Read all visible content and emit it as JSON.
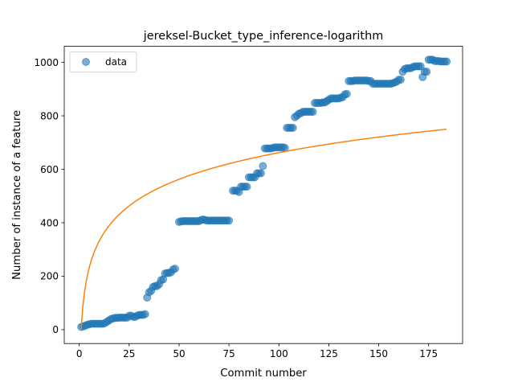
{
  "chart_data": {
    "type": "scatter",
    "title": "jereksel-Bucket_type_inference-logarithm",
    "xlabel": "Commit number",
    "ylabel": "Number of instance of a feature",
    "xlim": [
      -7.5,
      192
    ],
    "ylim": [
      -52,
      1060
    ],
    "xticks": [
      0,
      25,
      50,
      75,
      100,
      125,
      150,
      175
    ],
    "yticks": [
      0,
      200,
      400,
      600,
      800,
      1000
    ],
    "grid": false,
    "legend": {
      "position": "top-left",
      "entries": [
        "data"
      ]
    },
    "colors": {
      "data": "#1f77b4",
      "fit": "#ff7f0e"
    },
    "series": [
      {
        "name": "data",
        "kind": "scatter",
        "points": [
          [
            1,
            10
          ],
          [
            2,
            12
          ],
          [
            3,
            15
          ],
          [
            4,
            18
          ],
          [
            5,
            20
          ],
          [
            6,
            22
          ],
          [
            7,
            22
          ],
          [
            8,
            22
          ],
          [
            9,
            22
          ],
          [
            10,
            22
          ],
          [
            11,
            22
          ],
          [
            12,
            22
          ],
          [
            13,
            25
          ],
          [
            14,
            30
          ],
          [
            15,
            35
          ],
          [
            16,
            40
          ],
          [
            17,
            42
          ],
          [
            18,
            44
          ],
          [
            19,
            44
          ],
          [
            20,
            45
          ],
          [
            21,
            45
          ],
          [
            22,
            45
          ],
          [
            23,
            45
          ],
          [
            24,
            45
          ],
          [
            25,
            52
          ],
          [
            26,
            52
          ],
          [
            27,
            48
          ],
          [
            28,
            48
          ],
          [
            29,
            52
          ],
          [
            30,
            55
          ],
          [
            31,
            55
          ],
          [
            32,
            55
          ],
          [
            33,
            58
          ],
          [
            34,
            120
          ],
          [
            35,
            140
          ],
          [
            36,
            145
          ],
          [
            37,
            160
          ],
          [
            38,
            163
          ],
          [
            39,
            163
          ],
          [
            40,
            170
          ],
          [
            41,
            185
          ],
          [
            42,
            188
          ],
          [
            43,
            210
          ],
          [
            44,
            212
          ],
          [
            45,
            212
          ],
          [
            46,
            215
          ],
          [
            47,
            225
          ],
          [
            48,
            228
          ],
          [
            50,
            403
          ],
          [
            51,
            405
          ],
          [
            52,
            406
          ],
          [
            53,
            406
          ],
          [
            54,
            406
          ],
          [
            55,
            406
          ],
          [
            56,
            406
          ],
          [
            57,
            406
          ],
          [
            58,
            406
          ],
          [
            59,
            406
          ],
          [
            60,
            406
          ],
          [
            61,
            410
          ],
          [
            62,
            412
          ],
          [
            63,
            410
          ],
          [
            64,
            408
          ],
          [
            65,
            408
          ],
          [
            66,
            408
          ],
          [
            67,
            408
          ],
          [
            68,
            408
          ],
          [
            69,
            408
          ],
          [
            70,
            408
          ],
          [
            71,
            408
          ],
          [
            72,
            408
          ],
          [
            73,
            408
          ],
          [
            74,
            408
          ],
          [
            75,
            408
          ],
          [
            77,
            520
          ],
          [
            78,
            520
          ],
          [
            79,
            520
          ],
          [
            80,
            515
          ],
          [
            81,
            535
          ],
          [
            82,
            535
          ],
          [
            83,
            535
          ],
          [
            84,
            535
          ],
          [
            85,
            570
          ],
          [
            86,
            570
          ],
          [
            87,
            570
          ],
          [
            88,
            570
          ],
          [
            89,
            585
          ],
          [
            90,
            585
          ],
          [
            91,
            585
          ],
          [
            92,
            612
          ],
          [
            93,
            678
          ],
          [
            94,
            678
          ],
          [
            95,
            678
          ],
          [
            96,
            678
          ],
          [
            97,
            680
          ],
          [
            98,
            682
          ],
          [
            99,
            682
          ],
          [
            100,
            682
          ],
          [
            101,
            682
          ],
          [
            102,
            682
          ],
          [
            103,
            680
          ],
          [
            104,
            755
          ],
          [
            105,
            755
          ],
          [
            106,
            755
          ],
          [
            107,
            755
          ],
          [
            108,
            795
          ],
          [
            109,
            800
          ],
          [
            110,
            808
          ],
          [
            111,
            810
          ],
          [
            112,
            815
          ],
          [
            113,
            815
          ],
          [
            114,
            815
          ],
          [
            115,
            815
          ],
          [
            116,
            815
          ],
          [
            117,
            815
          ],
          [
            118,
            848
          ],
          [
            119,
            848
          ],
          [
            120,
            848
          ],
          [
            121,
            848
          ],
          [
            122,
            850
          ],
          [
            123,
            850
          ],
          [
            124,
            855
          ],
          [
            125,
            860
          ],
          [
            126,
            865
          ],
          [
            127,
            865
          ],
          [
            128,
            865
          ],
          [
            129,
            865
          ],
          [
            130,
            865
          ],
          [
            131,
            868
          ],
          [
            132,
            870
          ],
          [
            133,
            880
          ],
          [
            134,
            882
          ],
          [
            135,
            930
          ],
          [
            136,
            930
          ],
          [
            137,
            930
          ],
          [
            138,
            932
          ],
          [
            139,
            932
          ],
          [
            140,
            932
          ],
          [
            141,
            932
          ],
          [
            142,
            932
          ],
          [
            143,
            932
          ],
          [
            144,
            932
          ],
          [
            145,
            930
          ],
          [
            146,
            930
          ],
          [
            147,
            920
          ],
          [
            148,
            920
          ],
          [
            149,
            920
          ],
          [
            150,
            920
          ],
          [
            151,
            920
          ],
          [
            152,
            920
          ],
          [
            153,
            920
          ],
          [
            154,
            920
          ],
          [
            155,
            920
          ],
          [
            156,
            920
          ],
          [
            157,
            922
          ],
          [
            158,
            925
          ],
          [
            159,
            928
          ],
          [
            160,
            935
          ],
          [
            161,
            935
          ],
          [
            162,
            965
          ],
          [
            163,
            975
          ],
          [
            164,
            978
          ],
          [
            165,
            978
          ],
          [
            166,
            978
          ],
          [
            167,
            982
          ],
          [
            168,
            985
          ],
          [
            169,
            985
          ],
          [
            170,
            985
          ],
          [
            171,
            985
          ],
          [
            172,
            945
          ],
          [
            173,
            965
          ],
          [
            174,
            965
          ],
          [
            175,
            1010
          ],
          [
            176,
            1010
          ],
          [
            177,
            1010
          ],
          [
            178,
            1005
          ],
          [
            179,
            1005
          ],
          [
            180,
            1005
          ],
          [
            181,
            1003
          ],
          [
            182,
            1003
          ],
          [
            183,
            1003
          ],
          [
            184,
            1003
          ]
        ]
      },
      {
        "name": "",
        "kind": "line",
        "function": "log",
        "a": 0,
        "b": 143.8,
        "x_range": [
          1,
          184
        ]
      }
    ]
  }
}
